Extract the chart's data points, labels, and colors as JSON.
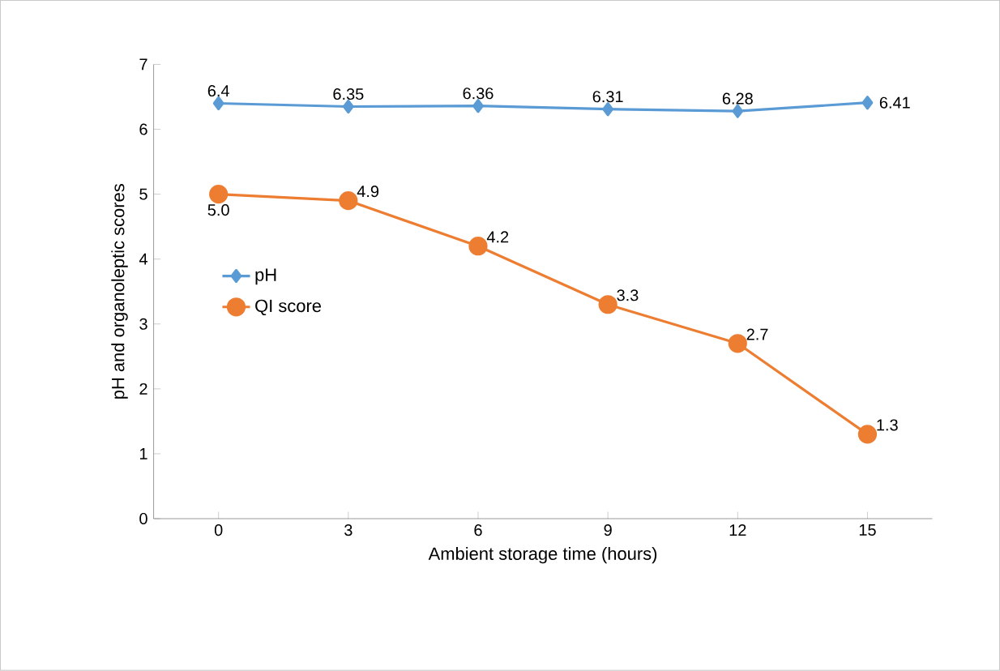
{
  "chart_data": {
    "type": "line",
    "xlabel": "Ambient storage time (hours)",
    "ylabel": "pH and organoleptic scores",
    "categories": [
      "0",
      "3",
      "6",
      "9",
      "12",
      "15"
    ],
    "ylim": [
      0,
      7
    ],
    "yticks": [
      0,
      1,
      2,
      3,
      4,
      5,
      6,
      7
    ],
    "legend": "left",
    "grid": false,
    "series": [
      {
        "name": "pH",
        "color": "#5b9bd5",
        "marker": "diamond",
        "values": [
          6.4,
          6.35,
          6.36,
          6.31,
          6.28,
          6.41
        ],
        "value_labels": [
          "6.4",
          "6.35",
          "6.36",
          "6.31",
          "6.28",
          "6.41"
        ]
      },
      {
        "name": "QI score",
        "color": "#ed7d31",
        "marker": "circle",
        "values": [
          5.0,
          4.9,
          4.2,
          3.3,
          2.7,
          1.3
        ],
        "value_labels": [
          "5.0",
          "4.9",
          "4.2",
          "3.3",
          "2.7",
          "1.3"
        ]
      }
    ]
  }
}
